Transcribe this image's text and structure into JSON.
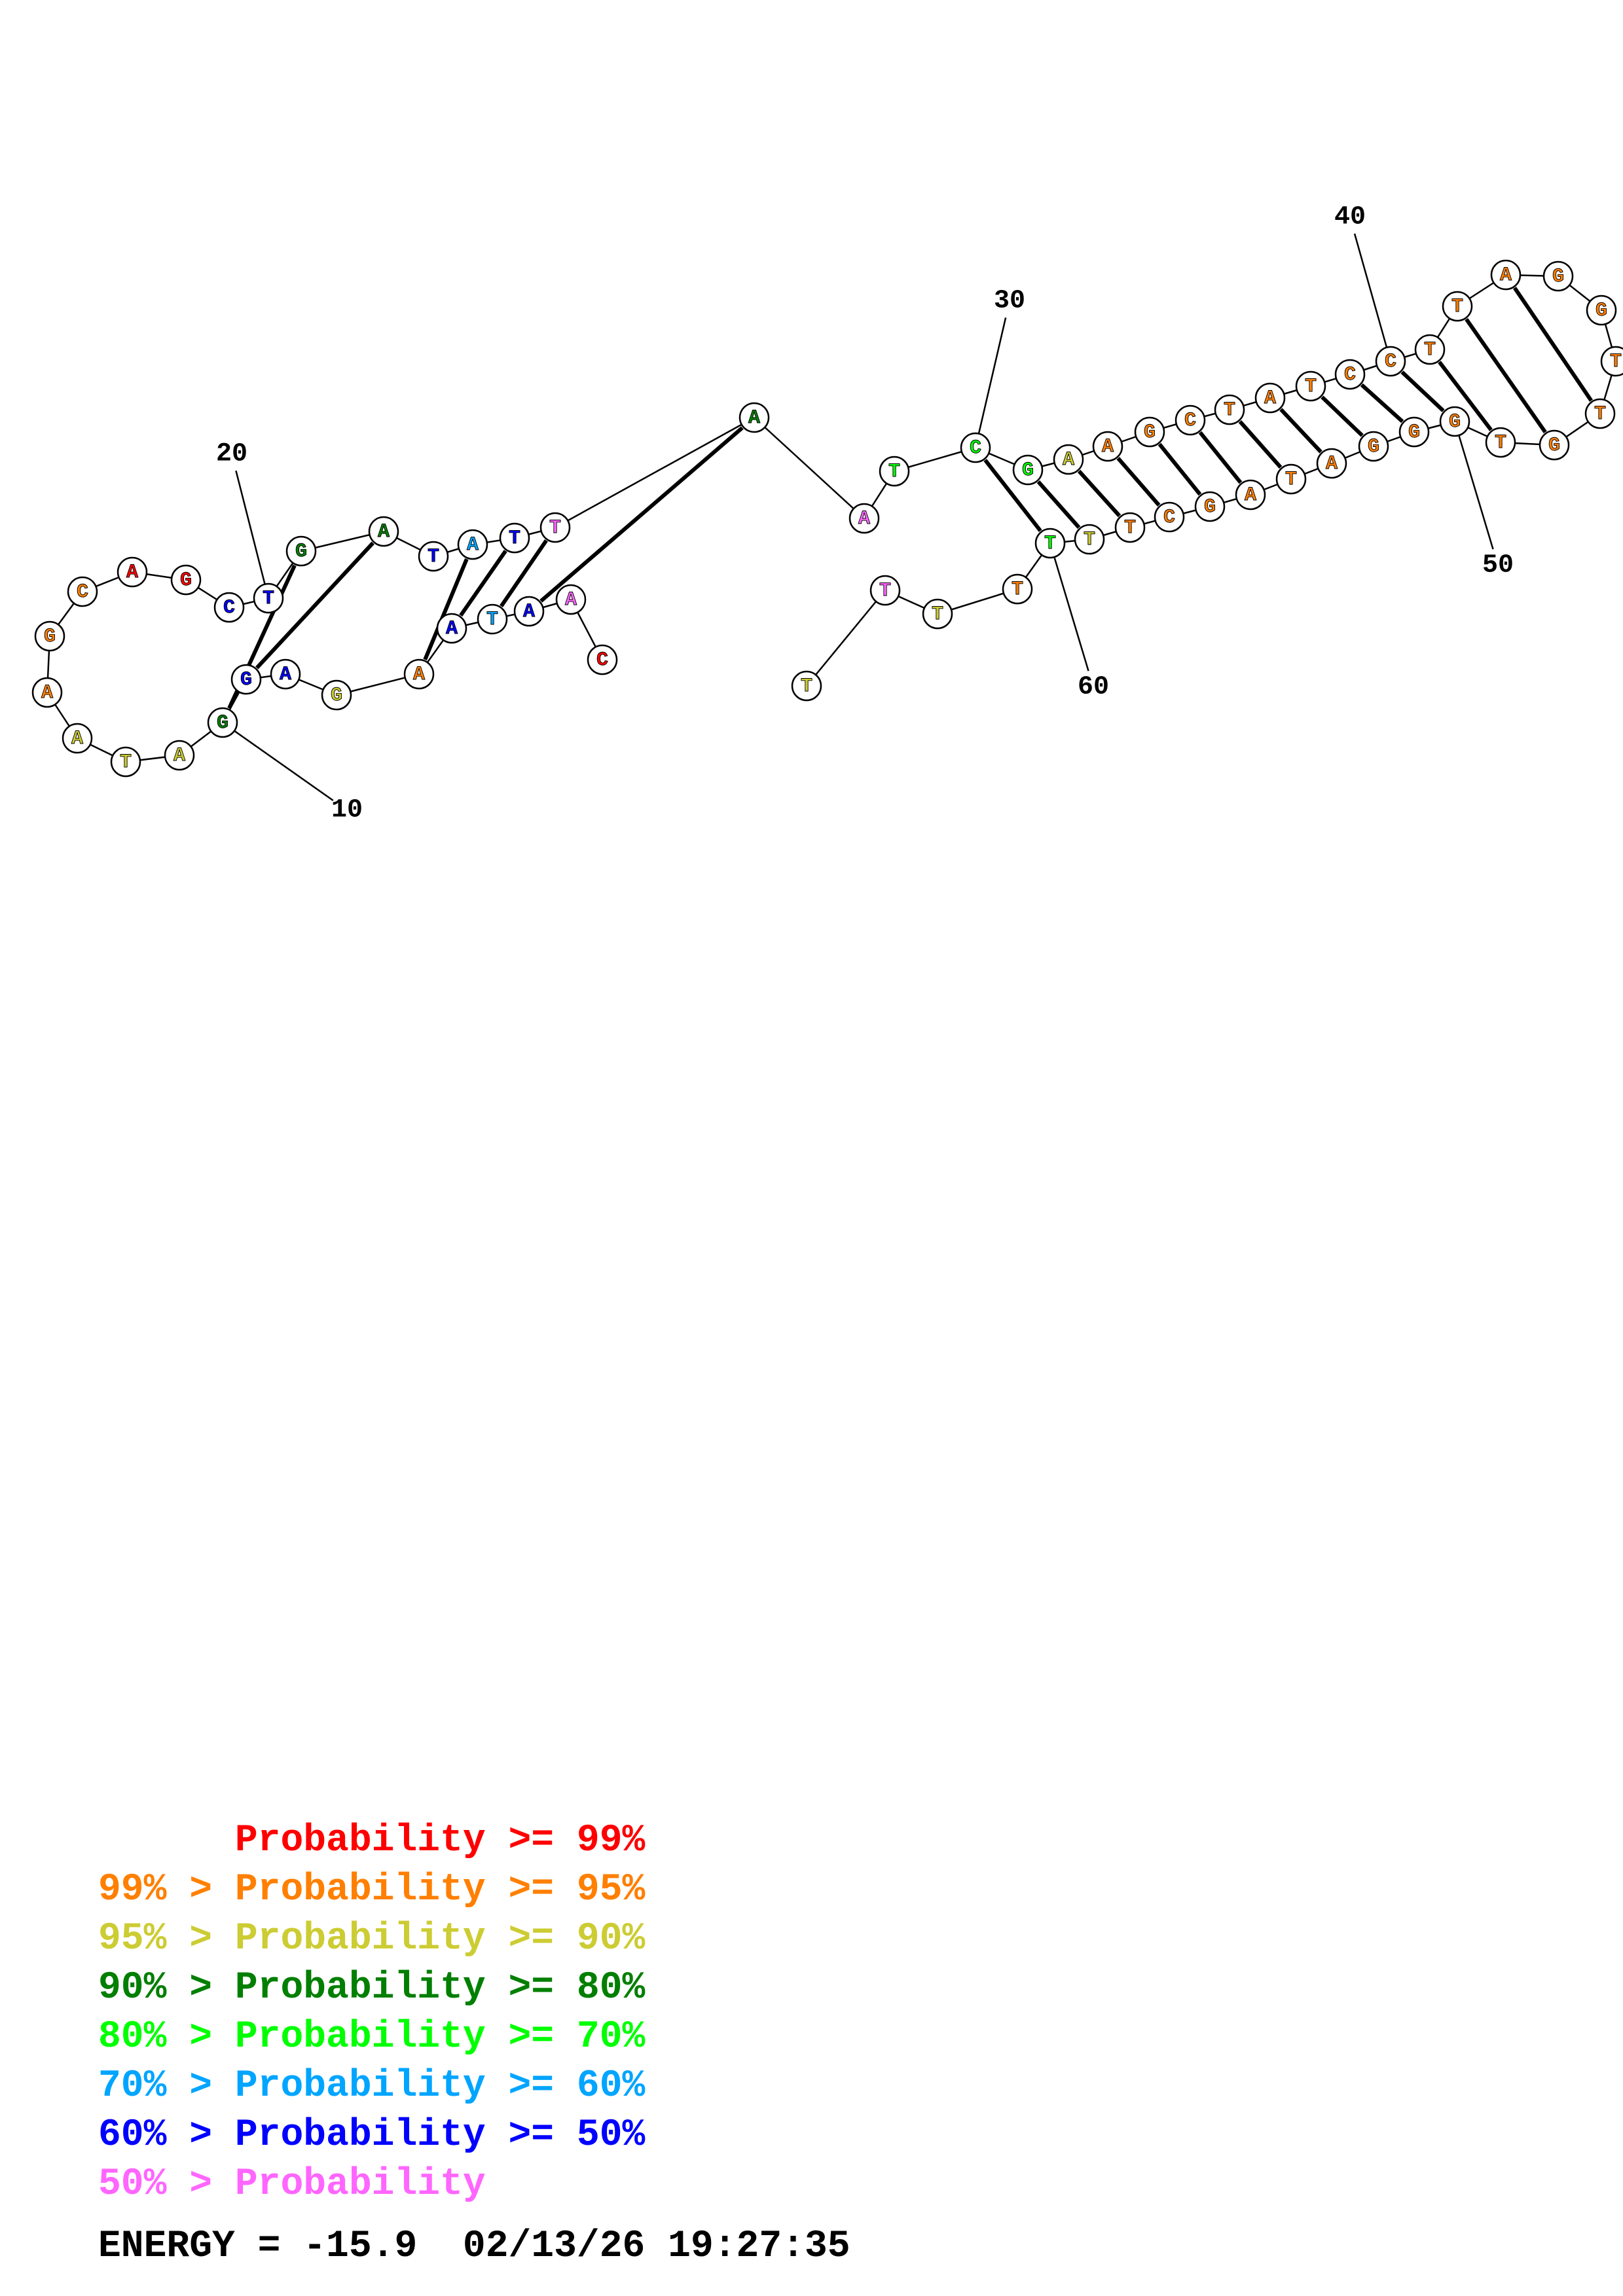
{
  "colors": {
    "p99": "#ff0000",
    "p95": "#ff7f00",
    "p90": "#cccc33",
    "p80": "#007f00",
    "p70": "#00ff00",
    "p60": "#00a5ff",
    "p50": "#0000ff",
    "low": "#ff66ff"
  },
  "bases": [
    {
      "n": "C",
      "c": "p99"
    },
    {
      "n": "A",
      "c": "low"
    },
    {
      "n": "A",
      "c": "p50"
    },
    {
      "n": "T",
      "c": "p60"
    },
    {
      "n": "A",
      "c": "p50"
    },
    {
      "n": "A",
      "c": "p95"
    },
    {
      "n": "G",
      "c": "p90"
    },
    {
      "n": "A",
      "c": "p50"
    },
    {
      "n": "G",
      "c": "p50"
    },
    {
      "n": "G",
      "c": "p80"
    },
    {
      "n": "A",
      "c": "p90"
    },
    {
      "n": "T",
      "c": "p90"
    },
    {
      "n": "A",
      "c": "p90"
    },
    {
      "n": "A",
      "c": "p95"
    },
    {
      "n": "G",
      "c": "p95"
    },
    {
      "n": "C",
      "c": "p95"
    },
    {
      "n": "A",
      "c": "p99"
    },
    {
      "n": "G",
      "c": "p99"
    },
    {
      "n": "C",
      "c": "p50"
    },
    {
      "n": "T",
      "c": "p50"
    },
    {
      "n": "G",
      "c": "p80"
    },
    {
      "n": "A",
      "c": "p80"
    },
    {
      "n": "T",
      "c": "p50"
    },
    {
      "n": "A",
      "c": "p60"
    },
    {
      "n": "T",
      "c": "p50"
    },
    {
      "n": "T",
      "c": "low"
    },
    {
      "n": "A",
      "c": "p80"
    },
    {
      "n": "A",
      "c": "low"
    },
    {
      "n": "T",
      "c": "p70"
    },
    {
      "n": "C",
      "c": "p70"
    },
    {
      "n": "G",
      "c": "p70"
    },
    {
      "n": "A",
      "c": "p90"
    },
    {
      "n": "A",
      "c": "p95"
    },
    {
      "n": "G",
      "c": "p95"
    },
    {
      "n": "C",
      "c": "p95"
    },
    {
      "n": "T",
      "c": "p95"
    },
    {
      "n": "A",
      "c": "p95"
    },
    {
      "n": "T",
      "c": "p95"
    },
    {
      "n": "C",
      "c": "p95"
    },
    {
      "n": "C",
      "c": "p95"
    },
    {
      "n": "T",
      "c": "p95"
    },
    {
      "n": "T",
      "c": "p95"
    },
    {
      "n": "A",
      "c": "p95"
    },
    {
      "n": "G",
      "c": "p95"
    },
    {
      "n": "G",
      "c": "p95"
    },
    {
      "n": "T",
      "c": "p95"
    },
    {
      "n": "T",
      "c": "p95"
    },
    {
      "n": "G",
      "c": "p95"
    },
    {
      "n": "T",
      "c": "p95"
    },
    {
      "n": "G",
      "c": "p95"
    },
    {
      "n": "G",
      "c": "p95"
    },
    {
      "n": "G",
      "c": "p95"
    },
    {
      "n": "A",
      "c": "p95"
    },
    {
      "n": "T",
      "c": "p95"
    },
    {
      "n": "A",
      "c": "p95"
    },
    {
      "n": "G",
      "c": "p95"
    },
    {
      "n": "C",
      "c": "p95"
    },
    {
      "n": "T",
      "c": "p95"
    },
    {
      "n": "T",
      "c": "p90"
    },
    {
      "n": "T",
      "c": "p70"
    },
    {
      "n": "T",
      "c": "p95"
    },
    {
      "n": "T",
      "c": "p90"
    },
    {
      "n": "T",
      "c": "low"
    },
    {
      "n": "T",
      "c": "p90"
    }
  ],
  "pairs": [
    [
      3,
      27
    ],
    [
      4,
      26
    ],
    [
      5,
      25
    ],
    [
      6,
      24
    ],
    [
      9,
      22
    ],
    [
      10,
      21
    ],
    [
      30,
      60
    ],
    [
      31,
      59
    ],
    [
      32,
      58
    ],
    [
      33,
      57
    ],
    [
      34,
      56
    ],
    [
      35,
      55
    ],
    [
      36,
      54
    ],
    [
      37,
      53
    ],
    [
      38,
      52
    ],
    [
      39,
      51
    ],
    [
      40,
      50
    ],
    [
      41,
      49
    ],
    [
      42,
      48
    ],
    [
      43,
      47
    ]
  ],
  "position_labels": [
    {
      "idx": 10,
      "text": "10"
    },
    {
      "idx": 20,
      "text": "20"
    },
    {
      "idx": 30,
      "text": "30"
    },
    {
      "idx": 40,
      "text": "40"
    },
    {
      "idx": 50,
      "text": "50"
    },
    {
      "idx": 60,
      "text": "60"
    }
  ],
  "legend": {
    "row1": "      Probability >= 99%",
    "row2": "99% > Probability >= 95%",
    "row3": "95% > Probability >= 90%",
    "row4": "90% > Probability >= 80%",
    "row5": "80% > Probability >= 70%",
    "row6": "70% > Probability >= 60%",
    "row7": "60% > Probability >= 50%",
    "row8": "50% > Probability"
  },
  "energy_line": "ENERGY = -15.9  02/13/26 19:27:35"
}
